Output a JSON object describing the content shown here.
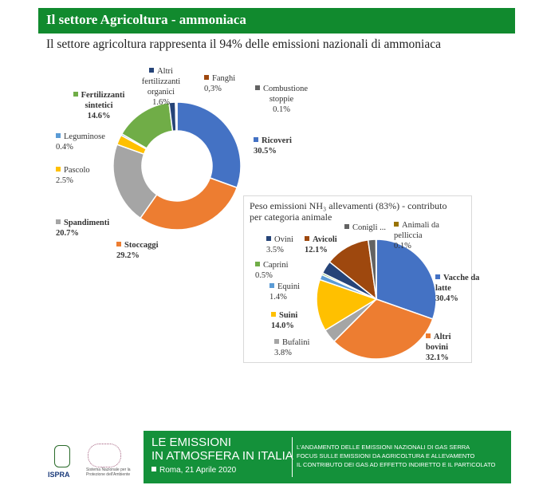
{
  "header": {
    "title": "Il settore Agricoltura - ammoniaca",
    "subtitle": "Il settore agricoltura rappresenta il 94% delle emissioni nazionali di ammoniaca"
  },
  "chart_data": [
    {
      "type": "donut",
      "categories": [
        "Ricoveri",
        "Stoccaggi",
        "Spandimenti",
        "Pascolo",
        "Leguminose",
        "Fertilizzanti sintetici",
        "Altri fertilizzanti organici",
        "Fanghi",
        "Combustione stoppie"
      ],
      "values": [
        30.5,
        29.2,
        20.7,
        2.5,
        0.4,
        14.6,
        1.6,
        0.3,
        0.1
      ],
      "value_labels": [
        "30.5%",
        "29.2%",
        "20.7%",
        "2.5%",
        "0.4%",
        "14.6%",
        "1.6%",
        "0,3%",
        "0.1%"
      ],
      "colors": [
        "#4472c4",
        "#ed7d31",
        "#a5a5a5",
        "#ffc000",
        "#5b9bd5",
        "#70ad47",
        "#264478",
        "#9e480e",
        "#636363"
      ]
    },
    {
      "type": "pie",
      "title": "Peso emissioni NH₃ allevamenti (83%) - contributo per categoria animale",
      "categories": [
        "Vacche da latte",
        "Altri bovini",
        "Bufalini",
        "Suini",
        "Equini",
        "Caprini",
        "Ovini",
        "Avicoli",
        "Conigli ...",
        "Animali da pelliccia"
      ],
      "values": [
        30.4,
        32.1,
        3.8,
        14.0,
        1.4,
        0.5,
        3.5,
        12.1,
        2.1,
        0.1
      ],
      "value_labels": [
        "30.4%",
        "32.1%",
        "3.8%",
        "14.0%",
        "1.4%",
        "0.5%",
        "3.5%",
        "12.1%",
        null,
        "0.1%"
      ],
      "colors": [
        "#4472c4",
        "#ed7d31",
        "#a5a5a5",
        "#ffc000",
        "#5b9bd5",
        "#70ad47",
        "#264478",
        "#9e480e",
        "#636363",
        "#997300"
      ]
    }
  ],
  "footer": {
    "logo": "ISPRA",
    "logo_text": "Sistema Nazionale per la Protezione dell'Ambiente",
    "banner": [
      "LE EMISSIONI",
      "IN ATMOSFERA IN ITALIA"
    ],
    "date": "Roma, 21 Aprile 2020",
    "topics": [
      "L'ANDAMENTO DELLE EMISSIONI NAZIONALI DI GAS SERRA",
      "FOCUS SULLE EMISSIONI DA AGRICOLTURA E ALLEVAMENTO",
      "IL CONTRIBUTO DEI GAS AD EFFETTO INDIRETTO E IL PARTICOLATO"
    ]
  }
}
